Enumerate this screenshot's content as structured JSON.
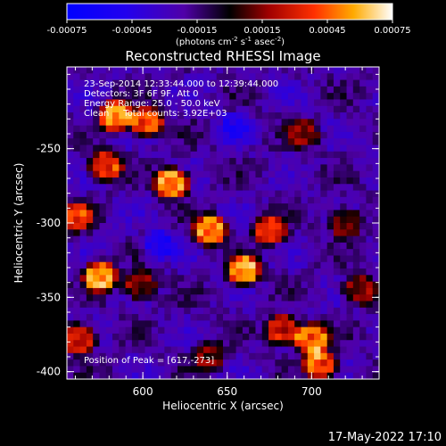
{
  "colorbar": {
    "unit_line1": "(photons cm",
    "unit_sup1": "-2",
    "unit_mid1": " s",
    "unit_sup2": "-1",
    "unit_mid2": " asec",
    "unit_sup3": "-2",
    "unit_end": ")",
    "ticks": [
      "-0.00075",
      "-0.00045",
      "-0.00015",
      "0.00015",
      "0.00045",
      "0.00075"
    ],
    "range": [
      -0.00075,
      0.00075
    ]
  },
  "chart_data": {
    "type": "heatmap",
    "title": "Reconstructed RHESSI Image",
    "xlabel": "Heliocentric X (arcsec)",
    "ylabel": "Heliocentric Y (arcsec)",
    "xlim": [
      555,
      740
    ],
    "ylim": [
      -405,
      -195
    ],
    "xticks": [
      600,
      650,
      700
    ],
    "yticks": [
      -250,
      -300,
      -350,
      -400
    ],
    "annotations": {
      "time": "23-Sep-2014 12:33:44.000 to 12:39:44.000",
      "detectors": "Detectors: 3F 6F 9F, Att 0",
      "energy": "Energy Range: 25.0 - 50.0 keV",
      "algorithm": "Clean     Total counts: 3.92E+03",
      "peak": "Position of Peak = [617,-273]"
    },
    "sources": [
      {
        "x": 584,
        "y": -228,
        "value": 0.0007
      },
      {
        "x": 602,
        "y": -232,
        "value": 0.00062
      },
      {
        "x": 578,
        "y": -262,
        "value": 0.00055
      },
      {
        "x": 560,
        "y": -296,
        "value": 0.00048
      },
      {
        "x": 575,
        "y": -336,
        "value": 0.00072
      },
      {
        "x": 598,
        "y": -342,
        "value": 0.0004
      },
      {
        "x": 562,
        "y": -378,
        "value": 0.00055
      },
      {
        "x": 617,
        "y": -273,
        "value": 0.00075
      },
      {
        "x": 640,
        "y": -305,
        "value": 0.00068
      },
      {
        "x": 660,
        "y": -332,
        "value": 0.0007
      },
      {
        "x": 675,
        "y": -305,
        "value": 0.0005
      },
      {
        "x": 683,
        "y": -372,
        "value": 0.00055
      },
      {
        "x": 700,
        "y": -378,
        "value": 0.00065
      },
      {
        "x": 705,
        "y": -395,
        "value": 0.0006
      },
      {
        "x": 695,
        "y": -240,
        "value": 0.0003
      },
      {
        "x": 720,
        "y": -300,
        "value": 0.00035
      },
      {
        "x": 728,
        "y": -345,
        "value": 0.00038
      },
      {
        "x": 640,
        "y": -390,
        "value": 0.0003
      },
      {
        "x": 610,
        "y": -315,
        "value": -0.0003
      },
      {
        "x": 655,
        "y": -235,
        "value": -0.0002
      }
    ]
  },
  "footer": {
    "timestamp": "17-May-2022 17:10"
  }
}
